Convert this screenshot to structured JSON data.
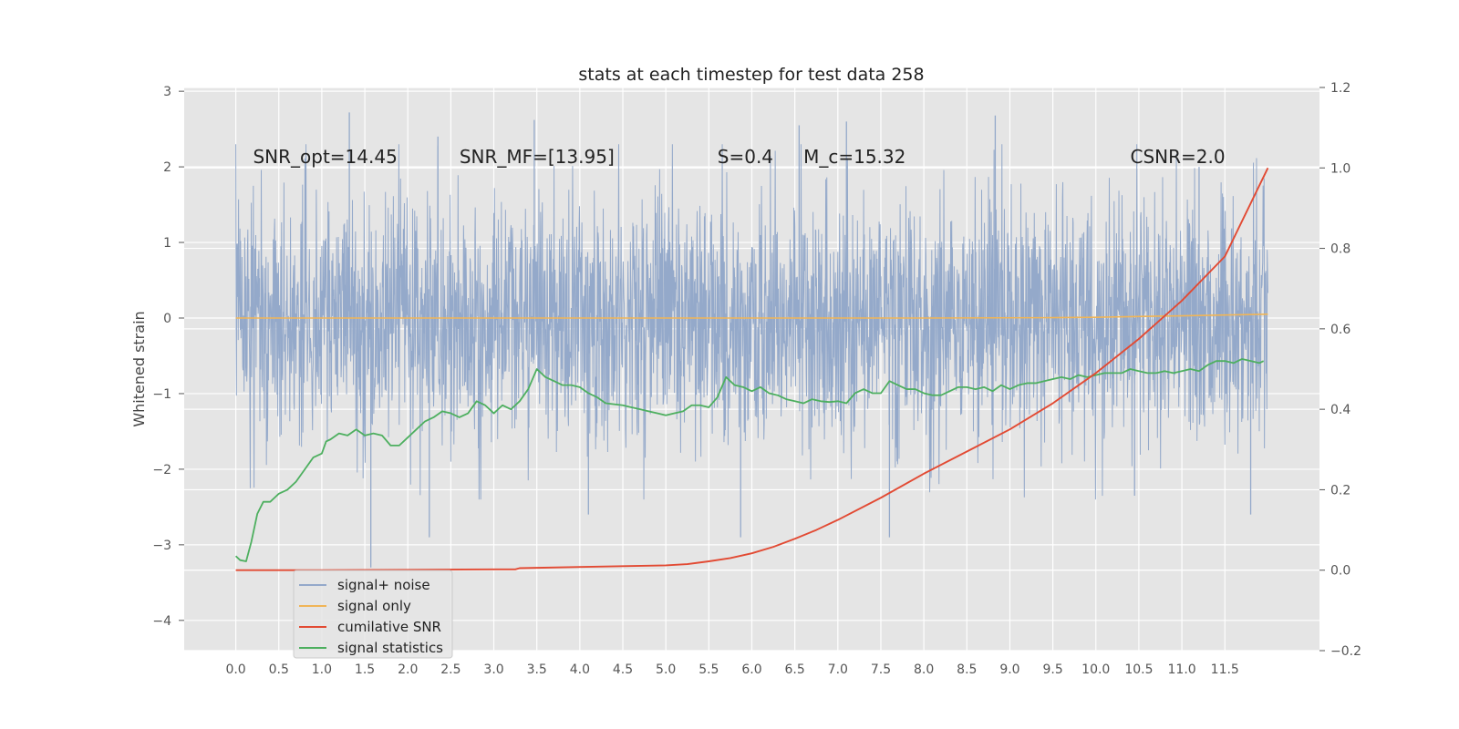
{
  "chart_data": {
    "type": "line",
    "title": "stats at each timestep for test data 258",
    "ylabel": "Whitened strain",
    "ylabel_right": "",
    "xlabel": "",
    "xlim": [
      -0.6,
      12.6
    ],
    "ylim": [
      -4.4,
      3.05
    ],
    "ylim_right": [
      -0.2,
      1.2
    ],
    "x_ticks": [
      0.0,
      0.5,
      1.0,
      1.5,
      2.0,
      2.5,
      3.0,
      3.5,
      4.0,
      4.5,
      5.0,
      5.5,
      6.0,
      6.5,
      7.0,
      7.5,
      8.0,
      8.5,
      9.0,
      9.5,
      10.0,
      10.5,
      11.0,
      11.5
    ],
    "x_tick_labels": [
      "0.0",
      "0.5",
      "1.0",
      "1.5",
      "2.0",
      "2.5",
      "3.0",
      "3.5",
      "4.0",
      "4.5",
      "5.0",
      "5.5",
      "6.0",
      "6.5",
      "7.0",
      "7.5",
      "8.0",
      "8.5",
      "9.0",
      "9.5",
      "10.0",
      "10.5",
      "11.0",
      "11.5"
    ],
    "y_ticks": [
      3,
      2,
      1,
      0,
      -1,
      -2,
      -3,
      -4
    ],
    "y_tick_labels": [
      "3",
      "2",
      "1",
      "0",
      "−1",
      "−2",
      "−3",
      "−4"
    ],
    "y_ticks_right": [
      1.2,
      1.0,
      0.8,
      0.6,
      0.4,
      0.2,
      0.0,
      -0.2
    ],
    "y_tick_labels_right": [
      "1.2",
      "1.0",
      "0.8",
      "0.6",
      "0.4",
      "0.2",
      "0.0",
      "−0.2"
    ],
    "grid": true,
    "legend_position": "lower-left",
    "annotations": [
      {
        "id": "snr-opt",
        "text": "SNR_opt=14.45",
        "x": 0.2,
        "y": 2.05
      },
      {
        "id": "snr-mf",
        "text": "SNR_MF=[13.95]",
        "x": 2.6,
        "y": 2.05
      },
      {
        "id": "s-value",
        "text": "S=0.4",
        "x": 5.6,
        "y": 2.05
      },
      {
        "id": "mc-value",
        "text": "M_c=15.32",
        "x": 6.6,
        "y": 2.05
      },
      {
        "id": "csnr",
        "text": "CSNR=2.0",
        "x": 10.4,
        "y": 2.05
      }
    ],
    "series": [
      {
        "name": "signal+ noise",
        "axis": "left",
        "style": "noise-band",
        "x_range": [
          0.0,
          12.0
        ],
        "band_upper": [
          [
            0.0,
            1.8
          ],
          [
            2.0,
            1.8
          ],
          [
            4.0,
            1.8
          ],
          [
            6.0,
            1.8
          ],
          [
            8.0,
            1.8
          ],
          [
            10.0,
            1.8
          ],
          [
            12.0,
            1.8
          ]
        ],
        "band_lower": [
          [
            0.0,
            -1.8
          ],
          [
            2.0,
            -1.8
          ],
          [
            4.0,
            -1.8
          ],
          [
            6.0,
            -1.8
          ],
          [
            8.0,
            -1.8
          ],
          [
            10.0,
            -1.8
          ],
          [
            12.0,
            -1.8
          ]
        ],
        "peaks": [
          [
            1.32,
            2.72
          ],
          [
            3.47,
            2.62
          ],
          [
            6.55,
            2.55
          ],
          [
            7.1,
            2.6
          ],
          [
            8.83,
            2.68
          ],
          [
            2.35,
            2.4
          ],
          [
            11.2,
            2.0
          ]
        ],
        "troughs": [
          [
            1.57,
            -3.3
          ],
          [
            2.25,
            -2.9
          ],
          [
            5.87,
            -2.9
          ],
          [
            7.6,
            -2.9
          ],
          [
            10.45,
            -2.35
          ],
          [
            11.8,
            -2.6
          ],
          [
            4.1,
            -2.6
          ]
        ]
      },
      {
        "name": "signal only",
        "axis": "left",
        "x": [
          0.0,
          2.0,
          4.0,
          6.0,
          8.0,
          9.5,
          10.0,
          10.5,
          11.0,
          11.5,
          12.0
        ],
        "y": [
          0.0,
          0.0,
          0.0,
          0.0,
          0.0,
          0.005,
          0.01,
          0.02,
          0.03,
          0.04,
          0.05
        ]
      },
      {
        "name": "cumilative SNR",
        "axis": "right",
        "x": [
          0.0,
          1.0,
          2.0,
          3.0,
          3.25,
          3.3,
          4.0,
          5.0,
          5.25,
          5.5,
          5.75,
          6.0,
          6.25,
          6.5,
          6.75,
          7.0,
          7.5,
          8.0,
          8.5,
          9.0,
          9.5,
          10.0,
          10.5,
          11.0,
          11.5,
          12.0
        ],
        "y": [
          0.0,
          0.0,
          0.001,
          0.002,
          0.002,
          0.005,
          0.008,
          0.012,
          0.015,
          0.022,
          0.03,
          0.042,
          0.058,
          0.078,
          0.1,
          0.125,
          0.18,
          0.24,
          0.295,
          0.35,
          0.415,
          0.49,
          0.575,
          0.67,
          0.78,
          1.0
        ]
      },
      {
        "name": "signal statistics",
        "axis": "right",
        "x": [
          0.0,
          0.05,
          0.12,
          0.18,
          0.25,
          0.32,
          0.4,
          0.45,
          0.5,
          0.6,
          0.7,
          0.8,
          0.9,
          1.0,
          1.05,
          1.1,
          1.2,
          1.3,
          1.4,
          1.5,
          1.6,
          1.7,
          1.8,
          1.9,
          2.0,
          2.1,
          2.2,
          2.3,
          2.4,
          2.5,
          2.6,
          2.7,
          2.8,
          2.9,
          3.0,
          3.1,
          3.2,
          3.3,
          3.4,
          3.5,
          3.6,
          3.7,
          3.8,
          3.9,
          4.0,
          4.1,
          4.2,
          4.3,
          4.5,
          4.6,
          4.7,
          4.8,
          4.9,
          5.0,
          5.1,
          5.2,
          5.3,
          5.4,
          5.5,
          5.6,
          5.7,
          5.8,
          5.9,
          6.0,
          6.1,
          6.2,
          6.3,
          6.4,
          6.5,
          6.6,
          6.7,
          6.8,
          6.9,
          7.0,
          7.1,
          7.2,
          7.3,
          7.4,
          7.5,
          7.6,
          7.7,
          7.8,
          7.9,
          8.0,
          8.1,
          8.2,
          8.3,
          8.4,
          8.5,
          8.6,
          8.7,
          8.8,
          8.9,
          9.0,
          9.1,
          9.2,
          9.3,
          9.4,
          9.5,
          9.6,
          9.7,
          9.8,
          9.9,
          10.0,
          10.1,
          10.2,
          10.3,
          10.4,
          10.5,
          10.6,
          10.7,
          10.8,
          10.9,
          11.0,
          11.1,
          11.2,
          11.3,
          11.4,
          11.5,
          11.6,
          11.7,
          11.8,
          11.9,
          11.95
        ],
        "y": [
          0.035,
          0.025,
          0.022,
          0.07,
          0.14,
          0.17,
          0.17,
          0.18,
          0.19,
          0.2,
          0.22,
          0.25,
          0.28,
          0.29,
          0.32,
          0.325,
          0.34,
          0.335,
          0.35,
          0.335,
          0.34,
          0.335,
          0.31,
          0.31,
          0.33,
          0.35,
          0.37,
          0.38,
          0.395,
          0.39,
          0.38,
          0.39,
          0.42,
          0.41,
          0.39,
          0.41,
          0.4,
          0.42,
          0.45,
          0.5,
          0.48,
          0.47,
          0.46,
          0.46,
          0.455,
          0.44,
          0.43,
          0.415,
          0.41,
          0.405,
          0.4,
          0.395,
          0.39,
          0.385,
          0.39,
          0.395,
          0.41,
          0.41,
          0.405,
          0.43,
          0.48,
          0.46,
          0.455,
          0.445,
          0.455,
          0.44,
          0.435,
          0.425,
          0.42,
          0.415,
          0.425,
          0.42,
          0.418,
          0.42,
          0.415,
          0.44,
          0.45,
          0.44,
          0.44,
          0.47,
          0.46,
          0.45,
          0.45,
          0.44,
          0.435,
          0.435,
          0.445,
          0.455,
          0.455,
          0.45,
          0.455,
          0.445,
          0.46,
          0.45,
          0.46,
          0.465,
          0.465,
          0.47,
          0.475,
          0.48,
          0.475,
          0.485,
          0.48,
          0.485,
          0.49,
          0.49,
          0.49,
          0.5,
          0.495,
          0.49,
          0.49,
          0.495,
          0.49,
          0.495,
          0.5,
          0.495,
          0.51,
          0.52,
          0.52,
          0.515,
          0.525,
          0.52,
          0.515,
          0.52
        ]
      }
    ],
    "colors": {
      "noise": "#94a9ca",
      "signal": "#f0b557",
      "csnr": "#e24a33",
      "stats": "#4daf5f",
      "plot_bg": "#e5e5e5",
      "grid": "#ffffff"
    }
  }
}
